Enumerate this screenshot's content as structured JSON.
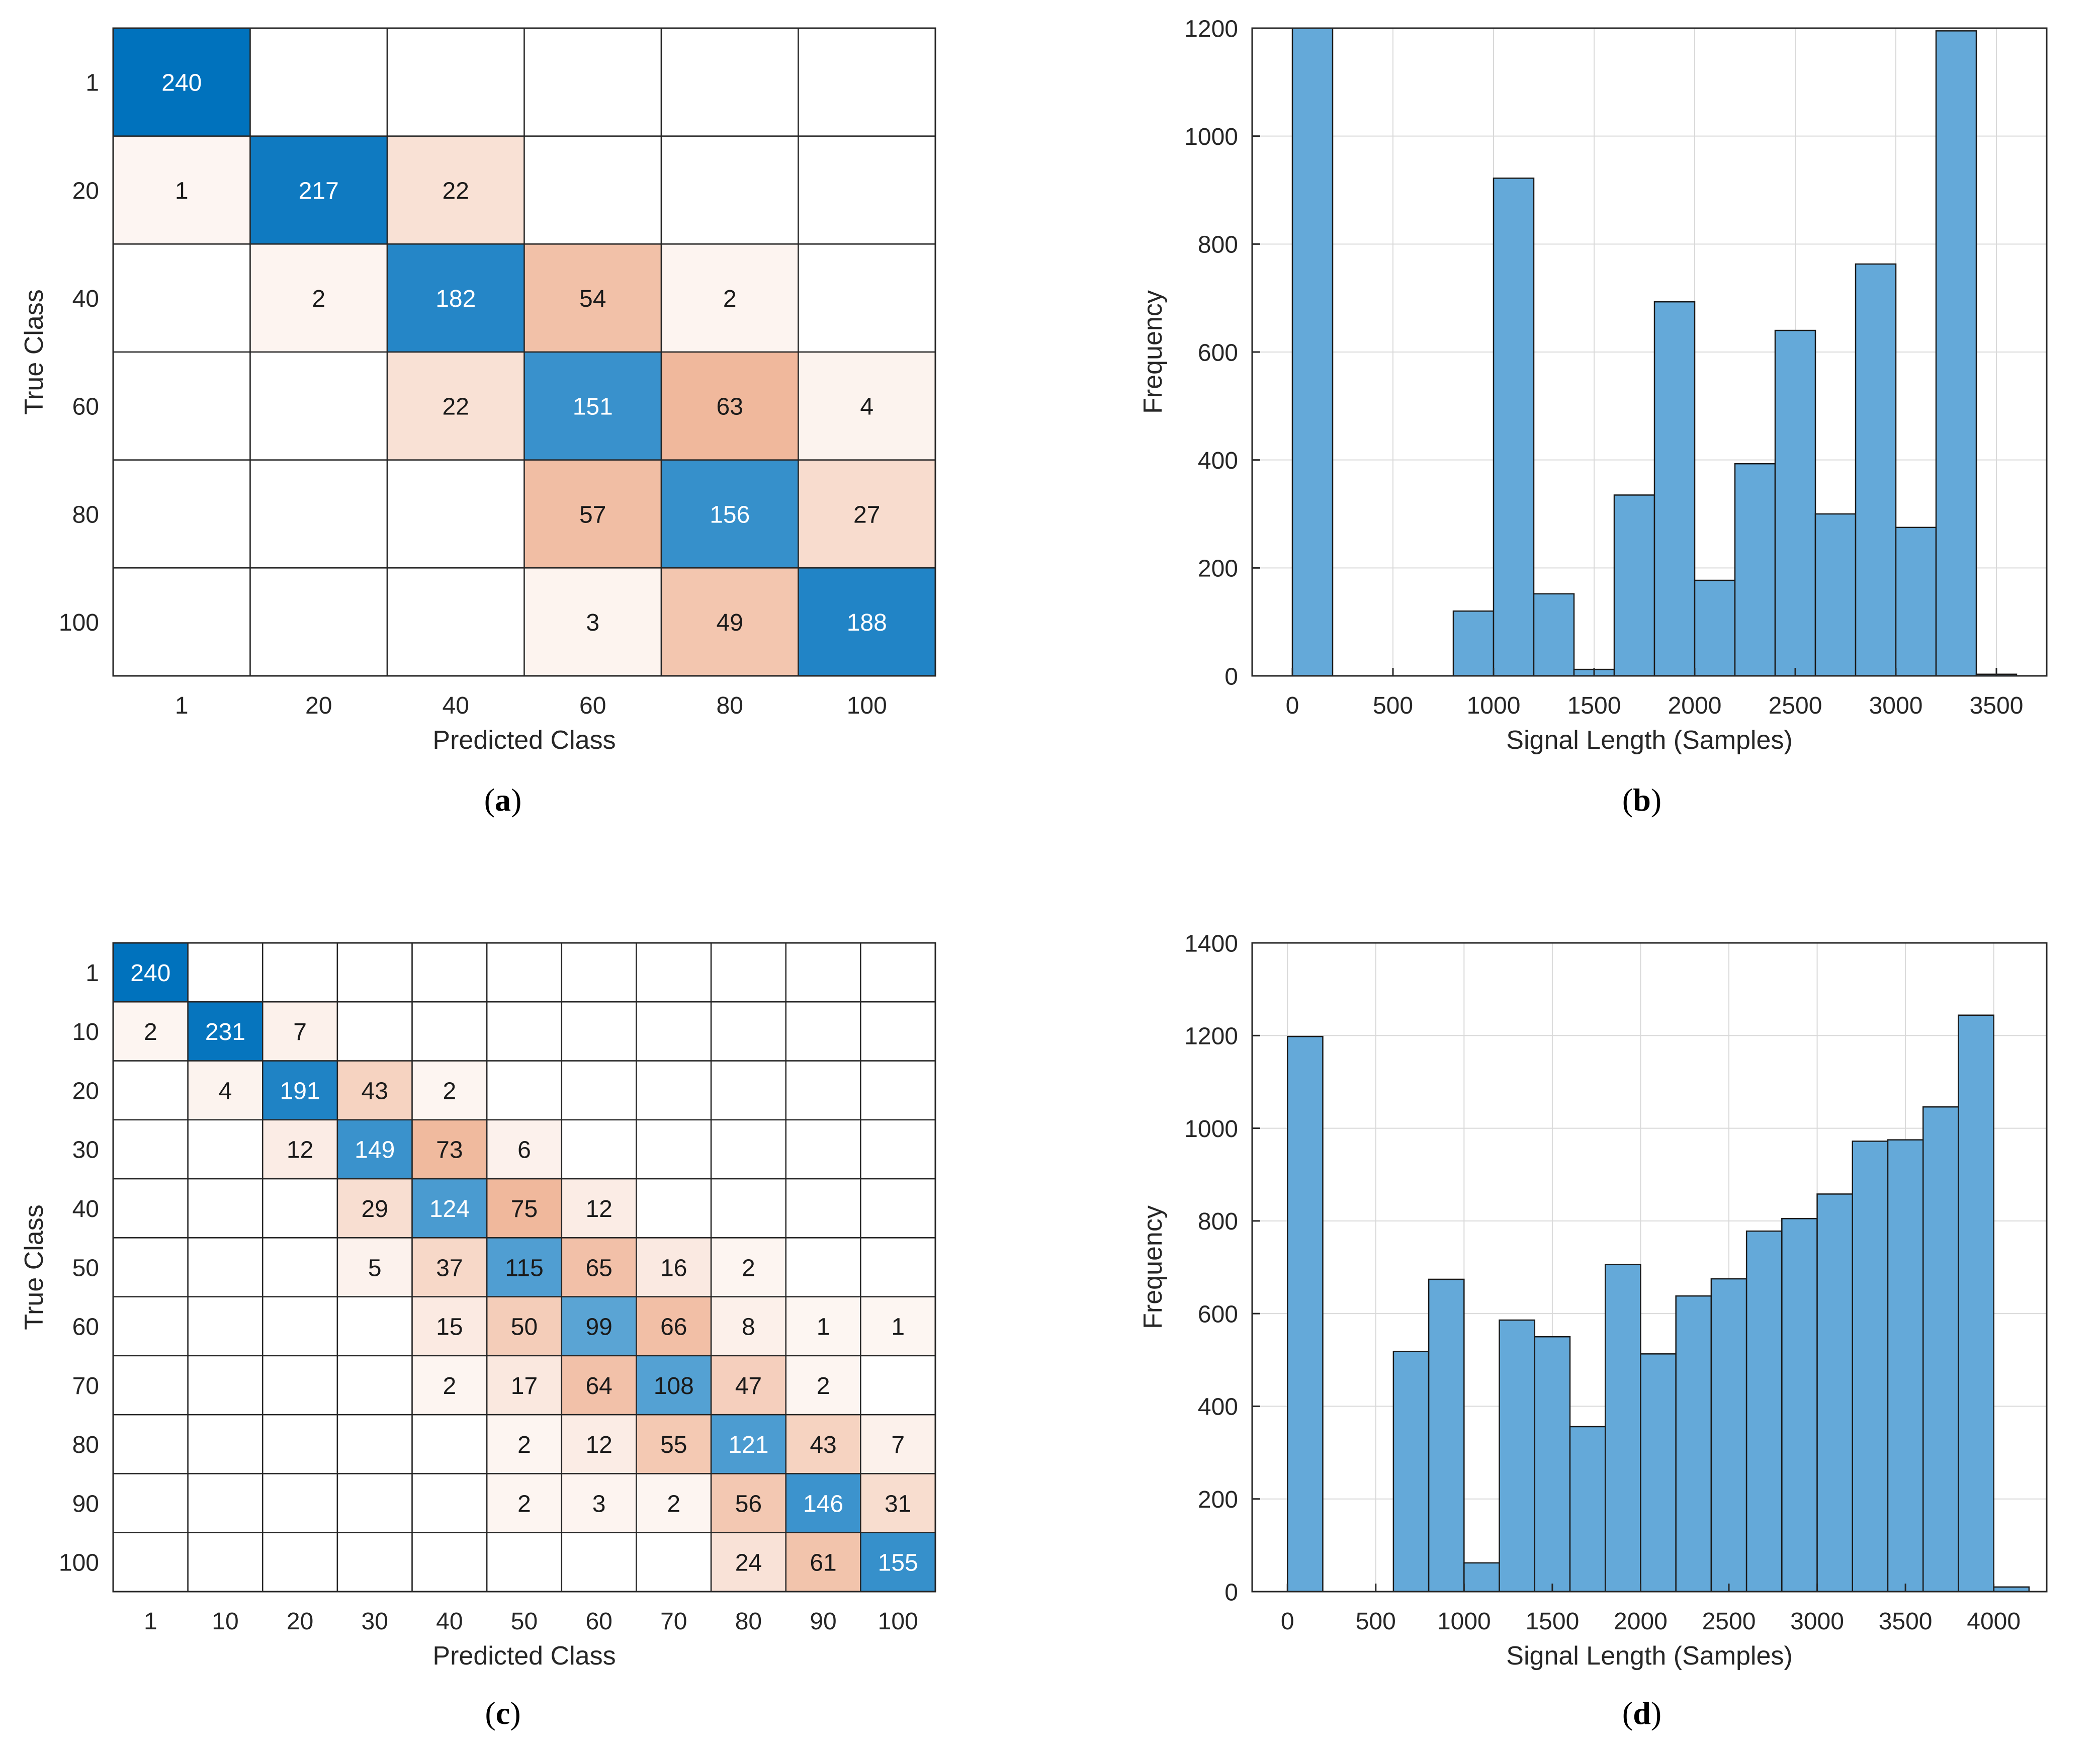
{
  "colors": {
    "diag_dark": "#0072bd",
    "hist_fill": "#64a9d9",
    "axis": "#262626",
    "grid": "#d9d9d9",
    "cell_border": "#262626",
    "off_diag_max": "#f0b89c"
  },
  "chart_data": [
    {
      "id": "a",
      "type": "heatmap",
      "title": "",
      "caption_letter": "a",
      "xlabel": "Predicted Class",
      "ylabel": "True Class",
      "classes": [
        "1",
        "20",
        "40",
        "60",
        "80",
        "100"
      ],
      "matrix": [
        [
          240,
          null,
          null,
          null,
          null,
          null
        ],
        [
          1,
          217,
          22,
          null,
          null,
          null
        ],
        [
          null,
          2,
          182,
          54,
          2,
          null
        ],
        [
          null,
          null,
          22,
          151,
          63,
          4
        ],
        [
          null,
          null,
          null,
          57,
          156,
          27
        ],
        [
          null,
          null,
          null,
          3,
          49,
          188
        ]
      ]
    },
    {
      "id": "b",
      "type": "bar",
      "title": "",
      "caption_letter": "b",
      "xlabel": "Signal Length (Samples)",
      "ylabel": "Frequency",
      "xlim": [
        -200,
        3750
      ],
      "ylim": [
        0,
        1200
      ],
      "xticks": [
        0,
        500,
        1000,
        1500,
        2000,
        2500,
        3000,
        3500
      ],
      "yticks": [
        0,
        200,
        400,
        600,
        800,
        1000,
        1200
      ],
      "grid": true,
      "bins": [
        {
          "x0": 0,
          "x1": 200,
          "value": 1200
        },
        {
          "x0": 800,
          "x1": 1000,
          "value": 120
        },
        {
          "x0": 1000,
          "x1": 1200,
          "value": 922
        },
        {
          "x0": 1200,
          "x1": 1400,
          "value": 152
        },
        {
          "x0": 1400,
          "x1": 1600,
          "value": 12
        },
        {
          "x0": 1600,
          "x1": 1800,
          "value": 335
        },
        {
          "x0": 1800,
          "x1": 2000,
          "value": 693
        },
        {
          "x0": 2000,
          "x1": 2200,
          "value": 177
        },
        {
          "x0": 2200,
          "x1": 2400,
          "value": 393
        },
        {
          "x0": 2400,
          "x1": 2600,
          "value": 640
        },
        {
          "x0": 2600,
          "x1": 2800,
          "value": 300
        },
        {
          "x0": 2800,
          "x1": 3000,
          "value": 763
        },
        {
          "x0": 3000,
          "x1": 3200,
          "value": 275
        },
        {
          "x0": 3200,
          "x1": 3400,
          "value": 1195
        },
        {
          "x0": 3400,
          "x1": 3600,
          "value": 3
        }
      ]
    },
    {
      "id": "c",
      "type": "heatmap",
      "title": "",
      "caption_letter": "c",
      "xlabel": "Predicted Class",
      "ylabel": "True Class",
      "classes": [
        "1",
        "10",
        "20",
        "30",
        "40",
        "50",
        "60",
        "70",
        "80",
        "90",
        "100"
      ],
      "matrix": [
        [
          240,
          null,
          null,
          null,
          null,
          null,
          null,
          null,
          null,
          null,
          null
        ],
        [
          2,
          231,
          7,
          null,
          null,
          null,
          null,
          null,
          null,
          null,
          null
        ],
        [
          null,
          4,
          191,
          43,
          2,
          null,
          null,
          null,
          null,
          null,
          null
        ],
        [
          null,
          null,
          12,
          149,
          73,
          6,
          null,
          null,
          null,
          null,
          null
        ],
        [
          null,
          null,
          null,
          29,
          124,
          75,
          12,
          null,
          null,
          null,
          null
        ],
        [
          null,
          null,
          null,
          5,
          37,
          115,
          65,
          16,
          2,
          null,
          null
        ],
        [
          null,
          null,
          null,
          null,
          15,
          50,
          99,
          66,
          8,
          1,
          1
        ],
        [
          null,
          null,
          null,
          null,
          2,
          17,
          64,
          108,
          47,
          2,
          null
        ],
        [
          null,
          null,
          null,
          null,
          null,
          2,
          12,
          55,
          121,
          43,
          7
        ],
        [
          null,
          null,
          null,
          null,
          null,
          2,
          3,
          2,
          56,
          146,
          31
        ],
        [
          null,
          null,
          null,
          null,
          null,
          null,
          null,
          null,
          24,
          61,
          155
        ]
      ]
    },
    {
      "id": "d",
      "type": "bar",
      "title": "",
      "caption_letter": "d",
      "xlabel": "Signal Length (Samples)",
      "ylabel": "Frequency",
      "xlim": [
        -200,
        4300
      ],
      "ylim": [
        0,
        1400
      ],
      "xticks": [
        0,
        500,
        1000,
        1500,
        2000,
        2500,
        3000,
        3500,
        4000
      ],
      "yticks": [
        0,
        200,
        400,
        600,
        800,
        1000,
        1200,
        1400
      ],
      "grid": true,
      "bins": [
        {
          "x0": 0,
          "x1": 200,
          "value": 1198
        },
        {
          "x0": 600,
          "x1": 800,
          "value": 518
        },
        {
          "x0": 800,
          "x1": 1000,
          "value": 674
        },
        {
          "x0": 1000,
          "x1": 1200,
          "value": 62
        },
        {
          "x0": 1200,
          "x1": 1400,
          "value": 586
        },
        {
          "x0": 1400,
          "x1": 1600,
          "value": 550
        },
        {
          "x0": 1600,
          "x1": 1800,
          "value": 356
        },
        {
          "x0": 1800,
          "x1": 2000,
          "value": 706
        },
        {
          "x0": 2000,
          "x1": 2200,
          "value": 513
        },
        {
          "x0": 2200,
          "x1": 2400,
          "value": 638
        },
        {
          "x0": 2400,
          "x1": 2600,
          "value": 675
        },
        {
          "x0": 2600,
          "x1": 2800,
          "value": 778
        },
        {
          "x0": 2800,
          "x1": 3000,
          "value": 805
        },
        {
          "x0": 3000,
          "x1": 3200,
          "value": 858
        },
        {
          "x0": 3200,
          "x1": 3400,
          "value": 972
        },
        {
          "x0": 3400,
          "x1": 3600,
          "value": 975
        },
        {
          "x0": 3600,
          "x1": 3800,
          "value": 1046
        },
        {
          "x0": 3800,
          "x1": 4000,
          "value": 1244
        },
        {
          "x0": 4000,
          "x1": 4200,
          "value": 10
        }
      ]
    }
  ]
}
